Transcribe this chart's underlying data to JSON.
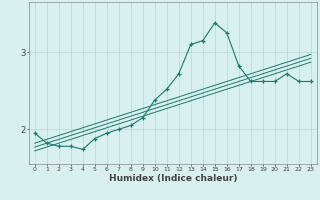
{
  "x": [
    0,
    1,
    2,
    3,
    4,
    5,
    6,
    7,
    8,
    9,
    10,
    11,
    12,
    13,
    14,
    15,
    16,
    17,
    18,
    19,
    20,
    21,
    22,
    23
  ],
  "y_main": [
    1.95,
    1.82,
    1.78,
    1.78,
    1.74,
    1.88,
    1.95,
    2.0,
    2.05,
    2.15,
    2.38,
    2.52,
    2.72,
    3.1,
    3.15,
    3.38,
    3.25,
    2.82,
    2.62,
    2.62,
    2.62,
    2.72,
    2.62,
    2.62
  ],
  "y_trend1": [
    1.72,
    1.77,
    1.82,
    1.87,
    1.92,
    1.97,
    2.02,
    2.07,
    2.12,
    2.17,
    2.22,
    2.27,
    2.32,
    2.37,
    2.42,
    2.47,
    2.52,
    2.57,
    2.62,
    2.67,
    2.72,
    2.77,
    2.82,
    2.87
  ],
  "y_trend2": [
    1.77,
    1.82,
    1.87,
    1.92,
    1.97,
    2.02,
    2.07,
    2.12,
    2.17,
    2.22,
    2.27,
    2.32,
    2.37,
    2.42,
    2.47,
    2.52,
    2.57,
    2.62,
    2.67,
    2.72,
    2.77,
    2.82,
    2.87,
    2.92
  ],
  "y_trend3": [
    1.82,
    1.87,
    1.92,
    1.97,
    2.02,
    2.07,
    2.12,
    2.17,
    2.22,
    2.27,
    2.32,
    2.37,
    2.42,
    2.47,
    2.52,
    2.57,
    2.62,
    2.67,
    2.72,
    2.77,
    2.82,
    2.87,
    2.92,
    2.97
  ],
  "line_color": "#1a7a6e",
  "bg_color": "#d8f0ee",
  "grid_color": "#b8d8d4",
  "axis_color": "#444444",
  "xlabel": "Humidex (Indice chaleur)",
  "ylim": [
    1.55,
    3.65
  ],
  "xlim": [
    -0.5,
    23.5
  ],
  "yticks": [
    2,
    3
  ],
  "xtick_labels": [
    "0",
    "1",
    "2",
    "3",
    "4",
    "5",
    "6",
    "7",
    "8",
    "9",
    "10",
    "11",
    "12",
    "13",
    "14",
    "15",
    "16",
    "17",
    "18",
    "19",
    "20",
    "21",
    "22",
    "23"
  ]
}
